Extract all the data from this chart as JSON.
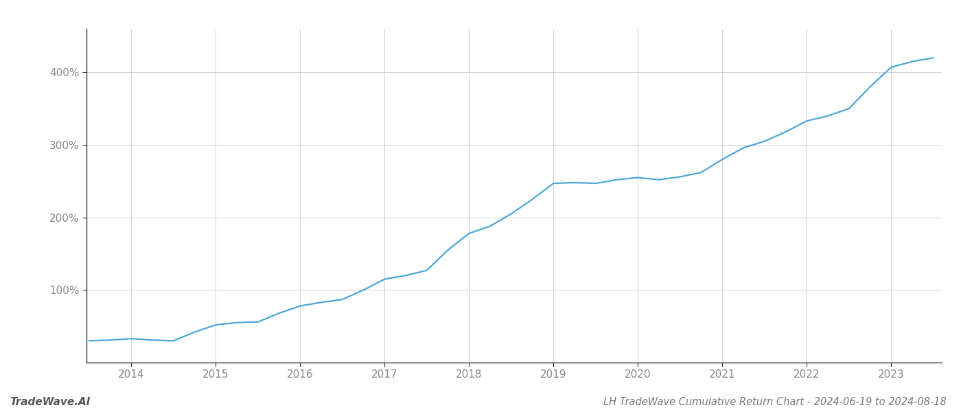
{
  "title": "LH TradeWave Cumulative Return Chart - 2024-06-19 to 2024-08-18",
  "watermark": "TradeWave.AI",
  "line_color": "#4da6d8",
  "background_color": "#ffffff",
  "grid_color": "#d0d0d0",
  "x_values": [
    2013.5,
    2013.75,
    2014.0,
    2014.25,
    2014.5,
    2014.75,
    2015.0,
    2015.25,
    2015.5,
    2015.75,
    2016.0,
    2016.25,
    2016.5,
    2016.75,
    2017.0,
    2017.25,
    2017.5,
    2017.75,
    2018.0,
    2018.25,
    2018.5,
    2018.75,
    2019.0,
    2019.25,
    2019.5,
    2019.75,
    2020.0,
    2020.25,
    2020.5,
    2020.75,
    2021.0,
    2021.25,
    2021.5,
    2021.75,
    2022.0,
    2022.25,
    2022.5,
    2022.75,
    2023.0,
    2023.25,
    2023.5
  ],
  "y_values": [
    30,
    31,
    33,
    31,
    30,
    42,
    52,
    55,
    56,
    68,
    78,
    83,
    87,
    100,
    115,
    120,
    127,
    155,
    178,
    188,
    205,
    225,
    247,
    248,
    247,
    252,
    255,
    252,
    256,
    262,
    280,
    296,
    305,
    318,
    333,
    340,
    350,
    380,
    407,
    415,
    420
  ],
  "xticks": [
    2014,
    2015,
    2016,
    2017,
    2018,
    2019,
    2020,
    2021,
    2022,
    2023
  ],
  "yticks": [
    100,
    200,
    300,
    400
  ],
  "ylim": [
    0,
    460
  ],
  "xlim": [
    2013.47,
    2023.6
  ],
  "line_width": 1.6,
  "title_fontsize": 10.5,
  "watermark_fontsize": 11,
  "tick_fontsize": 11,
  "axis_color": "#888888",
  "spine_color": "#333333",
  "title_color": "#777777",
  "watermark_color": "#555555"
}
